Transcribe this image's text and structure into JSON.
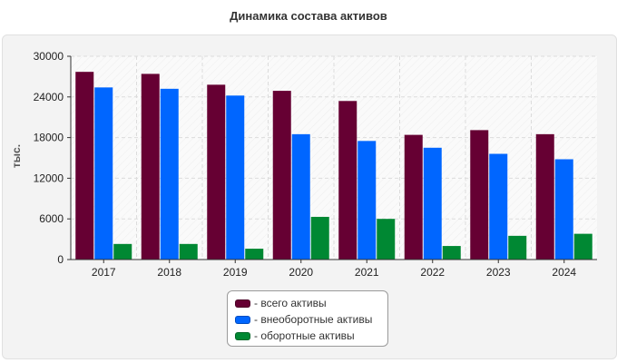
{
  "chart_data": {
    "type": "bar",
    "title": "Динамика состава активов",
    "ylabel": "тыс.",
    "xlabel": "",
    "ylim": [
      0,
      30000
    ],
    "yticks": [
      0,
      6000,
      12000,
      18000,
      24000,
      30000
    ],
    "categories": [
      "2017",
      "2018",
      "2019",
      "2020",
      "2021",
      "2022",
      "2023",
      "2024"
    ],
    "series": [
      {
        "name": "- всего активы",
        "color": "#660033",
        "values": [
          27700,
          27400,
          25800,
          24900,
          23400,
          18400,
          19100,
          18500
        ]
      },
      {
        "name": "- внеоборотные активы",
        "color": "#0066ff",
        "values": [
          25400,
          25200,
          24200,
          18500,
          17500,
          16500,
          15600,
          14800
        ]
      },
      {
        "name": "- оборотные активы",
        "color": "#008833",
        "values": [
          2300,
          2300,
          1600,
          6300,
          6000,
          2000,
          3500,
          3800
        ]
      }
    ],
    "grid": true,
    "legend_position": "bottom"
  }
}
